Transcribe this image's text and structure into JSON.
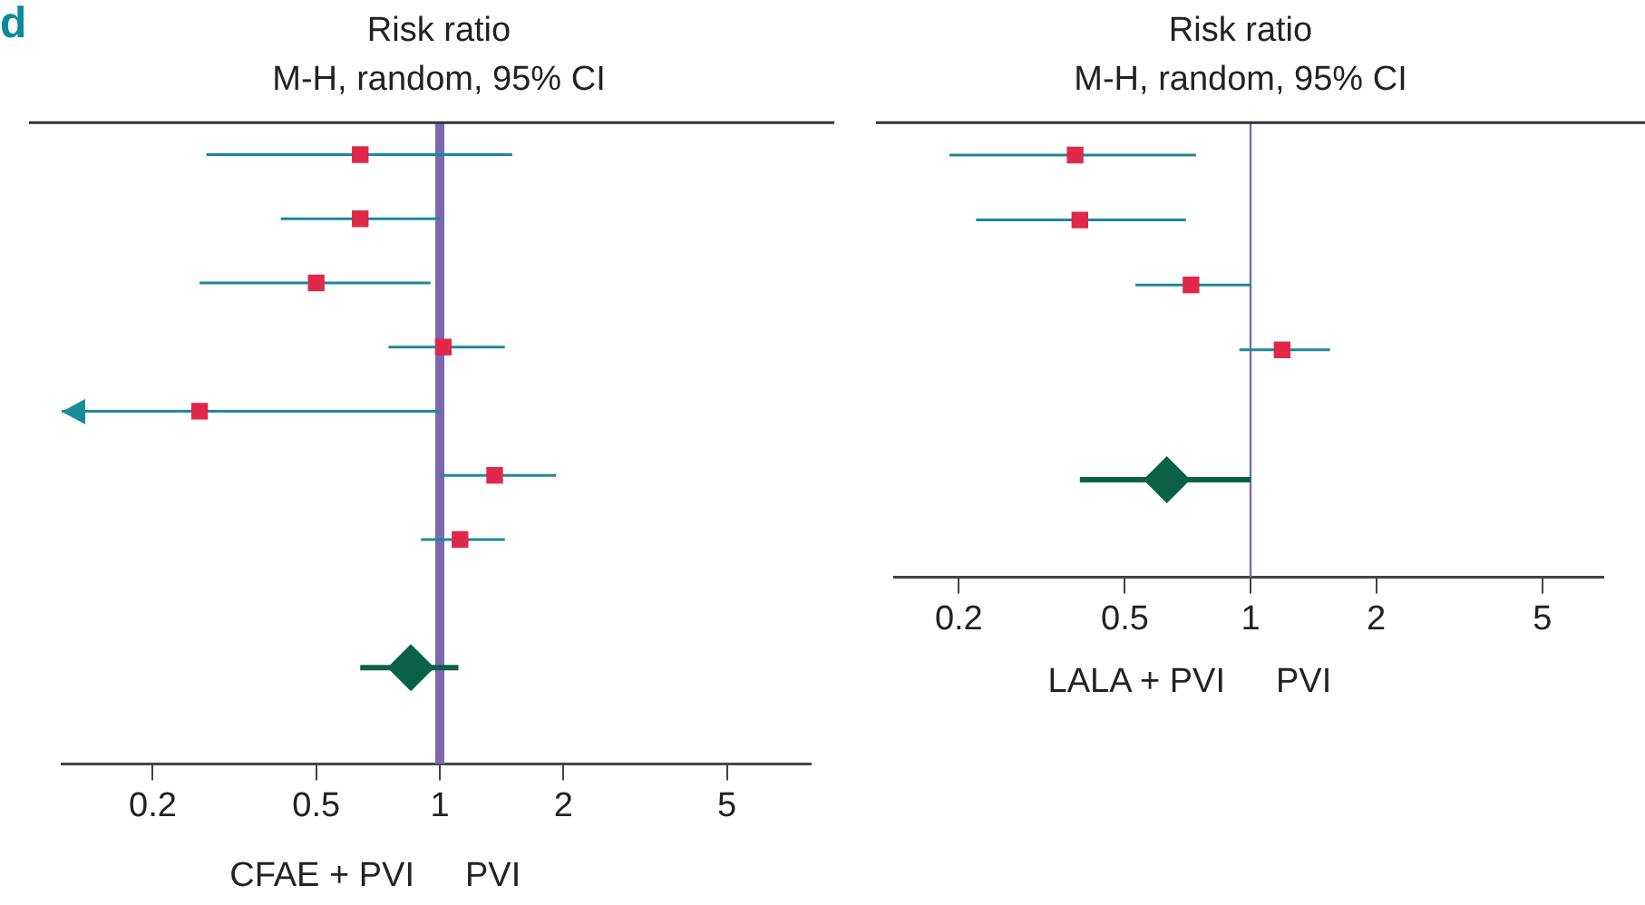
{
  "chart_data": [
    {
      "type": "scatter",
      "orientation": "horizontal",
      "title": "Risk ratio",
      "subtitle": "M-H, random, 95% CI",
      "log": "x",
      "xlim": [
        0.12,
        8
      ],
      "xticks": [
        0.2,
        0.5,
        1,
        2,
        5
      ],
      "grid": false,
      "legend": false,
      "tick_labels": "x",
      "categories": [
        null,
        null,
        null,
        null,
        null,
        null,
        null,
        null,
        null,
        null
      ],
      "series": [
        {
          "color": "#e0284a",
          "marker": "square",
          "values": [
            0.64,
            0.64,
            0.5,
            1.02,
            0.26,
            1.36,
            1.12,
            null,
            null,
            null
          ],
          "errors": [
            [
              0.27,
              1.5
            ],
            [
              0.41,
              1.0
            ],
            [
              0.26,
              0.95
            ],
            [
              0.75,
              1.44
            ],
            [
              0.12,
              1.0
            ],
            [
              1.0,
              1.92
            ],
            [
              0.9,
              1.44
            ],
            null,
            null,
            null
          ]
        },
        {
          "color": "#0a6147",
          "marker": "diamond",
          "values": [
            null,
            null,
            null,
            null,
            null,
            null,
            null,
            null,
            0.85,
            null
          ],
          "errors": [
            null,
            null,
            null,
            null,
            null,
            null,
            null,
            null,
            [
              0.64,
              1.11
            ],
            null
          ]
        }
      ],
      "ref_lines": [
        {
          "axis": "x",
          "value": 1,
          "color": "#7b68b0"
        }
      ],
      "annotations": [
        "CFAE + PVI",
        "PVI",
        "d"
      ]
    },
    {
      "type": "scatter",
      "orientation": "horizontal",
      "title": "Risk ratio",
      "subtitle": "M-H, random, 95% CI",
      "log": "x",
      "xlim": [
        0.14,
        7
      ],
      "xticks": [
        0.2,
        0.5,
        1,
        2,
        5
      ],
      "grid": false,
      "legend": false,
      "tick_labels": "x",
      "categories": [
        null,
        null,
        null,
        null,
        null,
        null,
        null
      ],
      "series": [
        {
          "color": "#e0284a",
          "marker": "square",
          "values": [
            0.38,
            0.39,
            0.72,
            1.19,
            null,
            null,
            null
          ],
          "errors": [
            [
              0.19,
              0.74
            ],
            [
              0.22,
              0.7
            ],
            [
              0.53,
              1.0
            ],
            [
              0.94,
              1.55
            ],
            null,
            null,
            null
          ]
        },
        {
          "color": "#0a6147",
          "marker": "diamond",
          "values": [
            null,
            null,
            null,
            null,
            null,
            0.63,
            null
          ],
          "errors": [
            null,
            null,
            null,
            null,
            null,
            [
              0.39,
              1.0
            ],
            null
          ]
        }
      ],
      "ref_lines": [
        {
          "axis": "x",
          "value": 1,
          "color": "#7b68b0"
        }
      ],
      "annotations": [
        "LALA + PVI",
        "PVI"
      ]
    }
  ]
}
